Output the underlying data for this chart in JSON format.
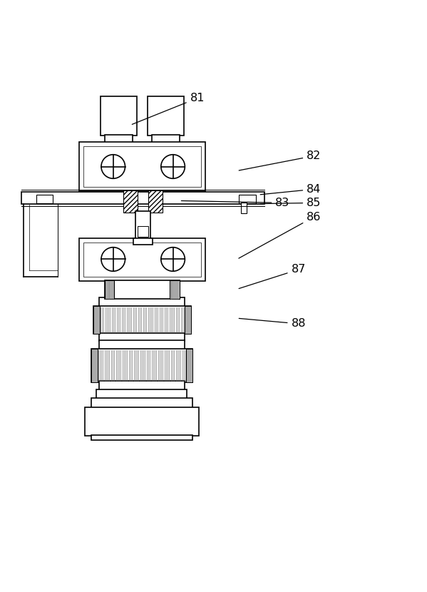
{
  "bg_color": "#ffffff",
  "line_color": "#000000",
  "label_color": "#000000"
}
